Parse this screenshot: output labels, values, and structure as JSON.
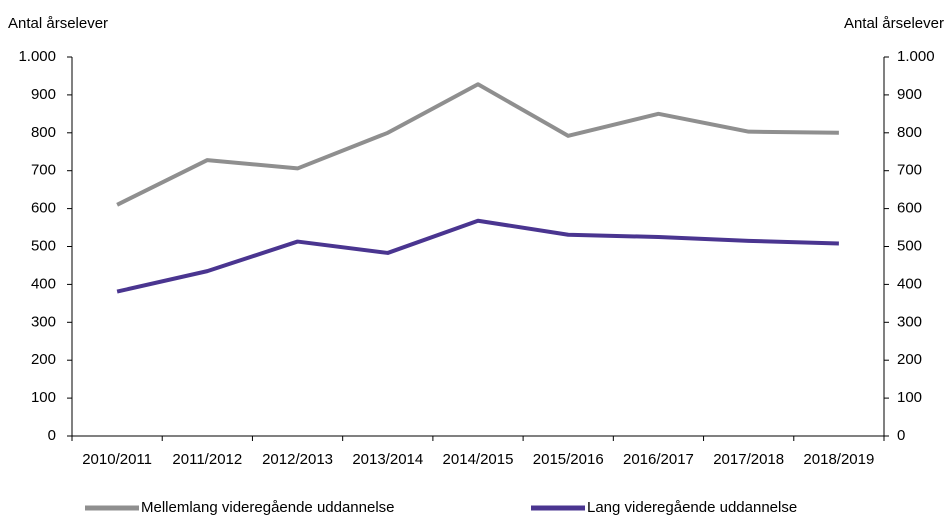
{
  "chart_data": {
    "type": "line",
    "y_label": "Antal årselever",
    "y2_label": "Antal årselever",
    "categories": [
      "2010/2011",
      "2011/2012",
      "2012/2013",
      "2013/2014",
      "2014/2015",
      "2015/2016",
      "2016/2017",
      "2017/2018",
      "2018/2019"
    ],
    "series": [
      {
        "name": "Mellemlang videregående uddannelse",
        "color": "#8f8f8f",
        "values": [
          610,
          728,
          706,
          800,
          928,
          792,
          850,
          803,
          800
        ]
      },
      {
        "name": "Lang videregående uddannelse",
        "color": "#4a3590",
        "values": [
          381,
          435,
          513,
          483,
          568,
          531,
          525,
          515,
          508
        ]
      }
    ],
    "ylim": [
      0,
      1000
    ],
    "yticks": [
      0,
      100,
      200,
      300,
      400,
      500,
      600,
      700,
      800,
      900,
      {
        "value": 1000,
        "label": "1.000"
      }
    ],
    "y2lim": [
      0,
      1000
    ],
    "y2ticks": [
      0,
      100,
      200,
      300,
      400,
      500,
      600,
      700,
      800,
      900,
      {
        "value": 1000,
        "label": "1.000"
      }
    ],
    "grid": false,
    "legend": "bottom"
  }
}
